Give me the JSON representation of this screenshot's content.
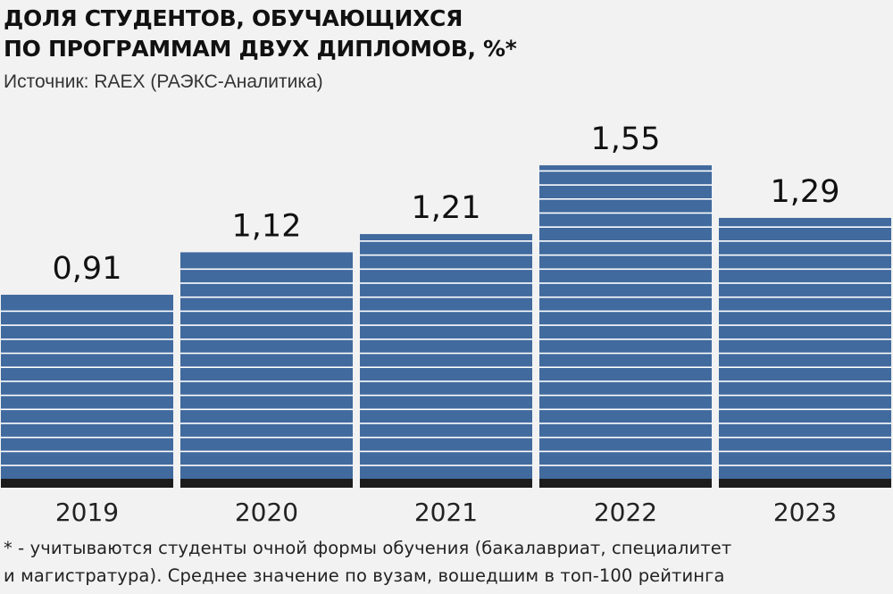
{
  "header": {
    "title_line1": "ДОЛЯ СТУДЕНТОВ, ОБУЧАЮЩИХСЯ",
    "title_line2": "ПО ПРОГРАММАМ ДВУХ ДИПЛОМОВ, %*",
    "source": "Источник: RAEX (РАЭКС-Аналитика)"
  },
  "footnote": {
    "line1": "* - учитываются студенты очной формы обучения (бакалавриат, специалитет",
    "line2": "и магистратура). Среднее значение по вузам, вошедшим в топ-100 рейтинга"
  },
  "colors": {
    "bar": "#416a9e",
    "bar_stripe": "#ffffff",
    "bar_base": "#1c1c1c",
    "text": "#111111",
    "background": "#f2f2f2"
  },
  "chart_data": {
    "type": "bar",
    "title": "ДОЛЯ СТУДЕНТОВ, ОБУЧАЮЩИХСЯ ПО ПРОГРАММАМ ДВУХ ДИПЛОМОВ, %*",
    "categories": [
      "2019",
      "2020",
      "2021",
      "2022",
      "2023"
    ],
    "values": [
      0.91,
      1.12,
      1.21,
      1.55,
      1.29
    ],
    "data_labels": [
      "0,91",
      "1,12",
      "1,21",
      "1,55",
      "1,29"
    ],
    "xlabel": "",
    "ylabel": "",
    "grid": false,
    "legend": "none"
  }
}
